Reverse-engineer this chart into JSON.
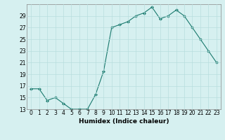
{
  "x": [
    0,
    1,
    2,
    3,
    4,
    5,
    6,
    7,
    8,
    9,
    10,
    11,
    12,
    13,
    14,
    15,
    16,
    17,
    18,
    19,
    20,
    21,
    22,
    23
  ],
  "y": [
    16.5,
    16.5,
    14.5,
    15.0,
    14.0,
    13.0,
    13.0,
    13.0,
    15.5,
    19.5,
    27.0,
    27.5,
    28.0,
    29.0,
    29.5,
    30.5,
    28.5,
    29.0,
    30.0,
    29.0,
    27.0,
    25.0,
    23.0,
    21.0
  ],
  "xlabel": "Humidex (Indice chaleur)",
  "bg_color": "#d6f0f0",
  "line_color": "#1a7a6e",
  "marker_color": "#1a7a6e",
  "grid_color": "#b8dede",
  "ylim": [
    13,
    31
  ],
  "yticks": [
    13,
    15,
    17,
    19,
    21,
    23,
    25,
    27,
    29
  ],
  "xlim": [
    -0.5,
    23.5
  ],
  "xticks": [
    0,
    1,
    2,
    3,
    4,
    5,
    6,
    7,
    8,
    9,
    10,
    11,
    12,
    13,
    14,
    15,
    16,
    17,
    18,
    19,
    20,
    21,
    22,
    23
  ],
  "tick_fontsize": 5.5,
  "xlabel_fontsize": 6.5,
  "xlabel_fontweight": "bold"
}
